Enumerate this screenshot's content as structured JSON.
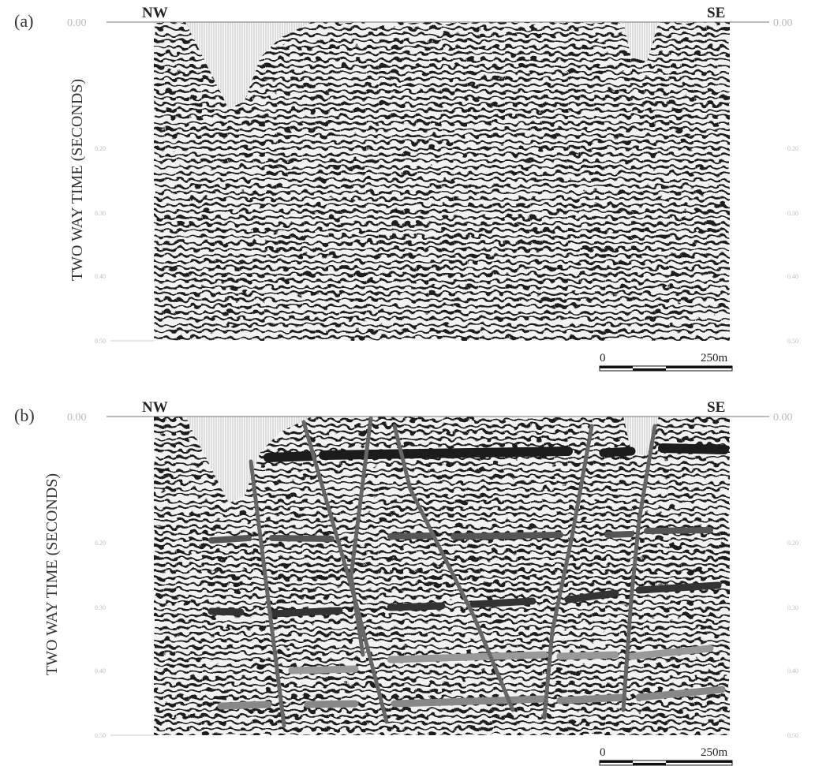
{
  "panels": [
    {
      "label": "(a)",
      "left": "NW",
      "right": "SE",
      "y_label": "TWO WAY TIME (SECONDS)",
      "ticks": [
        "0.00",
        "0.20",
        "0.30",
        "0.40",
        "0.50"
      ],
      "scale_start": "0",
      "scale_end": "250m"
    },
    {
      "label": "(b)",
      "left": "NW",
      "right": "SE",
      "y_label": "TWO WAY TIME (SECONDS)",
      "ticks": [
        "0.00",
        "0.20",
        "0.30",
        "0.40",
        "0.50"
      ],
      "scale_start": "0",
      "scale_end": "250m"
    }
  ]
}
